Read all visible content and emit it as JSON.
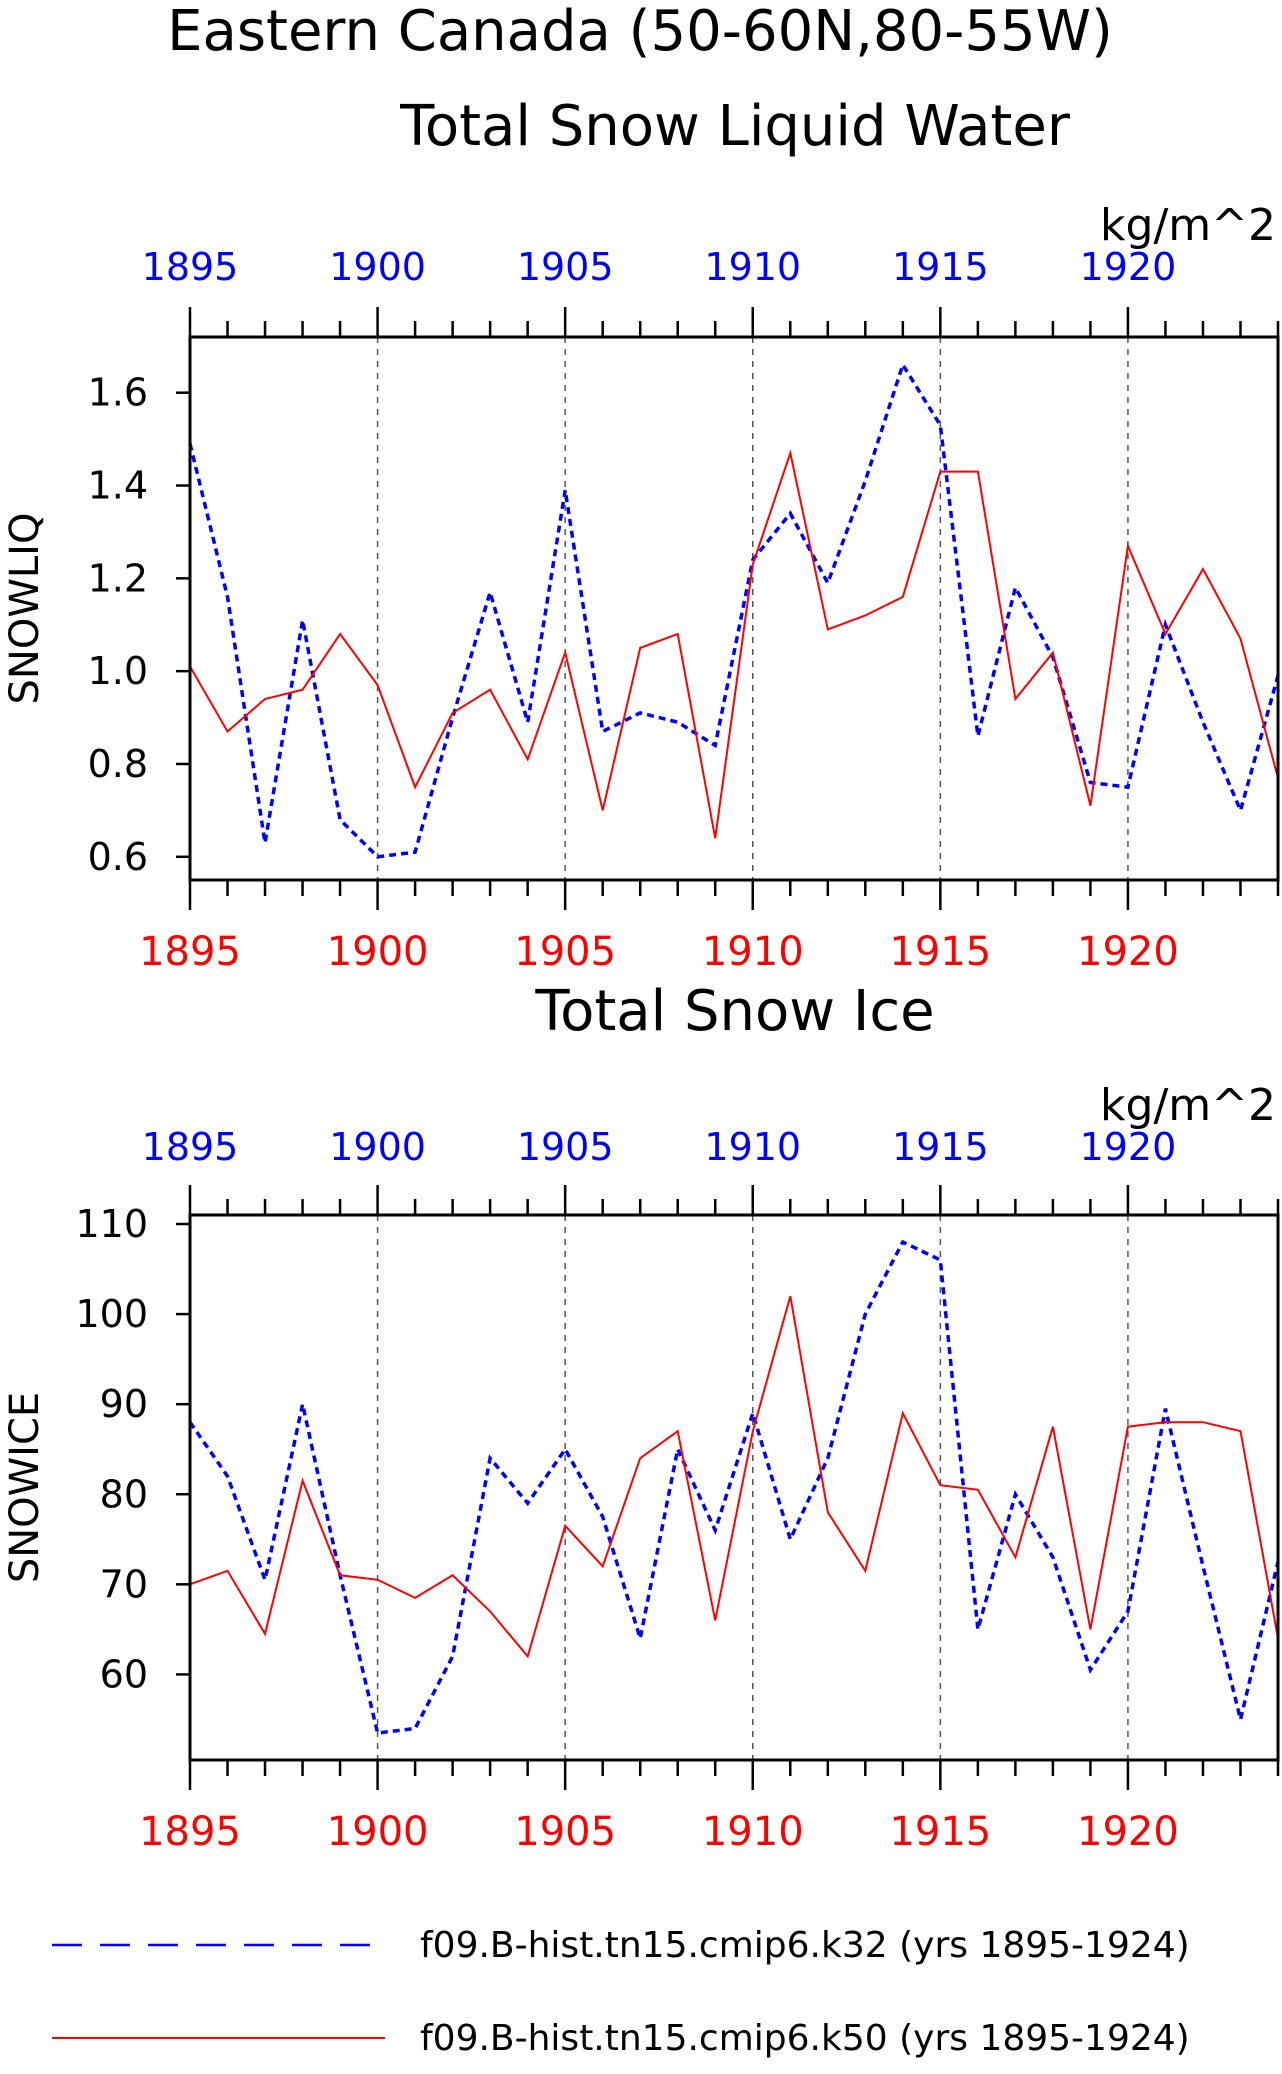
{
  "title_line1": "Eastern Canada (50-60N,80-55W)",
  "chart_data": [
    {
      "type": "line",
      "title": "Total Snow Liquid Water",
      "units": "kg/m^2",
      "ylabel": "SNOWLIQ",
      "xlim": [
        1895,
        1924
      ],
      "ylim": [
        0.55,
        1.72
      ],
      "yticks": [
        0.6,
        0.8,
        1.0,
        1.2,
        1.4,
        1.6
      ],
      "ytick_labels": [
        "0.6",
        "0.8",
        "1.0",
        "1.2",
        "1.4",
        "1.6"
      ],
      "xticks": [
        1895,
        1900,
        1905,
        1910,
        1915,
        1920
      ],
      "xtick_labels": [
        "1895",
        "1900",
        "1905",
        "1910",
        "1915",
        "1920"
      ],
      "x": [
        1895,
        1896,
        1897,
        1898,
        1899,
        1900,
        1901,
        1902,
        1903,
        1904,
        1905,
        1906,
        1907,
        1908,
        1909,
        1910,
        1911,
        1912,
        1913,
        1914,
        1915,
        1916,
        1917,
        1918,
        1919,
        1920,
        1921,
        1922,
        1923,
        1924
      ],
      "series": [
        {
          "name": "f09.B-hist.tn15.cmip6.k32 (yrs 1895-1924)",
          "color": "#0000ff",
          "style": "dashed",
          "values": [
            1.49,
            1.16,
            0.63,
            1.11,
            0.68,
            0.6,
            0.61,
            0.9,
            1.17,
            0.89,
            1.39,
            0.87,
            0.91,
            0.89,
            0.84,
            1.24,
            1.34,
            1.19,
            1.41,
            1.66,
            1.53,
            0.86,
            1.18,
            1.03,
            0.76,
            0.75,
            1.1,
            0.89,
            0.7,
            0.99
          ]
        },
        {
          "name": "f09.B-hist.tn15.cmip6.k50 (yrs 1895-1924)",
          "color": "#ff0000",
          "style": "solid",
          "values": [
            1.01,
            0.87,
            0.94,
            0.96,
            1.08,
            0.97,
            0.75,
            0.91,
            0.96,
            0.81,
            1.04,
            0.7,
            1.05,
            1.08,
            0.64,
            1.23,
            1.47,
            1.09,
            1.12,
            1.16,
            1.43,
            1.43,
            0.94,
            1.04,
            0.71,
            1.27,
            1.08,
            1.22,
            1.07,
            0.77
          ]
        }
      ]
    },
    {
      "type": "line",
      "title": "Total Snow Ice",
      "units": "kg/m^2",
      "ylabel": "SNOWICE",
      "xlim": [
        1895,
        1924
      ],
      "ylim": [
        50.5,
        111
      ],
      "yticks": [
        60,
        70,
        80,
        90,
        100,
        110
      ],
      "ytick_labels": [
        "60",
        "70",
        "80",
        "90",
        "100",
        "110"
      ],
      "xticks": [
        1895,
        1900,
        1905,
        1910,
        1915,
        1920
      ],
      "xtick_labels": [
        "1895",
        "1900",
        "1905",
        "1910",
        "1915",
        "1920"
      ],
      "x": [
        1895,
        1896,
        1897,
        1898,
        1899,
        1900,
        1901,
        1902,
        1903,
        1904,
        1905,
        1906,
        1907,
        1908,
        1909,
        1910,
        1911,
        1912,
        1913,
        1914,
        1915,
        1916,
        1917,
        1918,
        1919,
        1920,
        1921,
        1922,
        1923,
        1924
      ],
      "series": [
        {
          "name": "f09.B-hist.tn15.cmip6.k32 (yrs 1895-1924)",
          "color": "#0000ff",
          "style": "dashed",
          "values": [
            88,
            82,
            70.5,
            90,
            71,
            53.5,
            54,
            62,
            84,
            79,
            85,
            77.5,
            64,
            85,
            76,
            89,
            75,
            84,
            100,
            108,
            106,
            65,
            80,
            73,
            60.5,
            67,
            89.5,
            72,
            55,
            72.5
          ]
        },
        {
          "name": "f09.B-hist.tn15.cmip6.k50 (yrs 1895-1924)",
          "color": "#ff0000",
          "style": "solid",
          "values": [
            70,
            71.5,
            64.5,
            81.5,
            71,
            70.5,
            68.5,
            71,
            67,
            62,
            76.5,
            72,
            84,
            87,
            66,
            87,
            102,
            78,
            71.5,
            89,
            81,
            80.5,
            73,
            87.5,
            65,
            87.5,
            88,
            88,
            87,
            64
          ]
        }
      ]
    }
  ],
  "legend": [
    {
      "label": "f09.B-hist.tn15.cmip6.k32 (yrs 1895-1924)",
      "color": "#0000ff",
      "style": "dashed"
    },
    {
      "label": "f09.B-hist.tn15.cmip6.k50 (yrs 1895-1924)",
      "color": "#ff0000",
      "style": "solid"
    }
  ],
  "colors": {
    "top_axis": "#0000ff",
    "bottom_axis": "#ff0000",
    "frame": "#000000"
  }
}
